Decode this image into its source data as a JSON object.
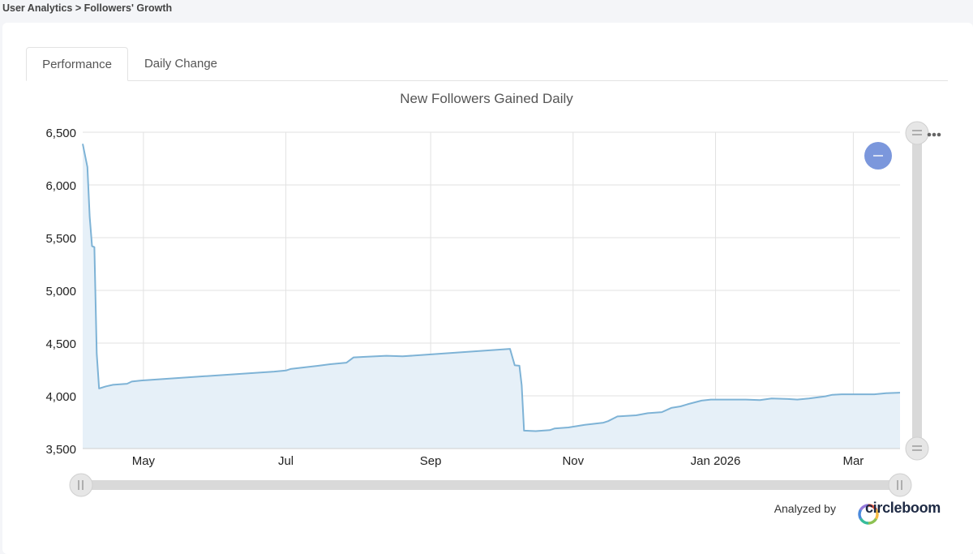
{
  "breadcrumb": "User Analytics > Followers' Growth",
  "tabs": [
    {
      "label": "Performance",
      "active": true
    },
    {
      "label": "Daily Change",
      "active": false
    }
  ],
  "footer": {
    "analyzed_by": "Analyzed by",
    "brand": "circleboom"
  },
  "colors": {
    "line": "#7eb3d6",
    "fill": "#e6f0f8",
    "grid": "#e2e2e2",
    "scrollbar": "#d9d9d9",
    "handle": "#e8e8e8",
    "zoom_button": "#7b97dc"
  },
  "icons": {
    "zoom_out_button": "minus-icon",
    "menu": "ellipsis-icon"
  },
  "chart_data": {
    "type": "area",
    "title": "New Followers Gained Daily",
    "xlabel": "",
    "ylabel": "",
    "ylim": [
      3500,
      6500
    ],
    "y_ticks": [
      {
        "value": 3500,
        "label": "3,500"
      },
      {
        "value": 4000,
        "label": "4,000"
      },
      {
        "value": 4500,
        "label": "4,500"
      },
      {
        "value": 5000,
        "label": "5,000"
      },
      {
        "value": 5500,
        "label": "5,500"
      },
      {
        "value": 6000,
        "label": "6,000"
      },
      {
        "value": 6500,
        "label": "6,500"
      }
    ],
    "xlim": [
      "2025-04-05",
      "2026-03-21"
    ],
    "x_ticks": [
      {
        "date": "2025-05-01",
        "label": "May"
      },
      {
        "date": "2025-07-01",
        "label": "Jul"
      },
      {
        "date": "2025-09-01",
        "label": "Sep"
      },
      {
        "date": "2025-11-01",
        "label": "Nov"
      },
      {
        "date": "2026-01-01",
        "label": "Jan 2026"
      },
      {
        "date": "2026-03-01",
        "label": "Mar"
      }
    ],
    "grid": true,
    "series": [
      {
        "points": [
          [
            "2025-04-05",
            6390
          ],
          [
            "2025-04-07",
            6170
          ],
          [
            "2025-04-08",
            5700
          ],
          [
            "2025-04-09",
            5420
          ],
          [
            "2025-04-10",
            5410
          ],
          [
            "2025-04-11",
            4400
          ],
          [
            "2025-04-12",
            4070
          ],
          [
            "2025-04-15",
            4090
          ],
          [
            "2025-04-18",
            4105
          ],
          [
            "2025-04-24",
            4115
          ],
          [
            "2025-04-26",
            4135
          ],
          [
            "2025-04-30",
            4145
          ],
          [
            "2025-06-26",
            4230
          ],
          [
            "2025-07-01",
            4240
          ],
          [
            "2025-07-03",
            4255
          ],
          [
            "2025-07-09",
            4270
          ],
          [
            "2025-07-15",
            4285
          ],
          [
            "2025-07-20",
            4300
          ],
          [
            "2025-07-27",
            4315
          ],
          [
            "2025-07-30",
            4365
          ],
          [
            "2025-08-04",
            4370
          ],
          [
            "2025-08-13",
            4380
          ],
          [
            "2025-08-20",
            4375
          ],
          [
            "2025-10-05",
            4445
          ],
          [
            "2025-10-07",
            4290
          ],
          [
            "2025-10-09",
            4285
          ],
          [
            "2025-10-10",
            4100
          ],
          [
            "2025-10-11",
            3670
          ],
          [
            "2025-10-16",
            3665
          ],
          [
            "2025-10-22",
            3675
          ],
          [
            "2025-10-24",
            3690
          ],
          [
            "2025-10-30",
            3700
          ],
          [
            "2025-11-06",
            3725
          ],
          [
            "2025-11-14",
            3745
          ],
          [
            "2025-11-16",
            3760
          ],
          [
            "2025-11-20",
            3805
          ],
          [
            "2025-11-28",
            3815
          ],
          [
            "2025-12-03",
            3835
          ],
          [
            "2025-12-09",
            3845
          ],
          [
            "2025-12-13",
            3885
          ],
          [
            "2025-12-17",
            3900
          ],
          [
            "2025-12-20",
            3920
          ],
          [
            "2025-12-26",
            3955
          ],
          [
            "2025-12-30",
            3965
          ],
          [
            "2026-01-14",
            3965
          ],
          [
            "2026-01-20",
            3960
          ],
          [
            "2026-01-25",
            3975
          ],
          [
            "2026-02-01",
            3970
          ],
          [
            "2026-02-05",
            3965
          ],
          [
            "2026-02-10",
            3975
          ],
          [
            "2026-02-17",
            3995
          ],
          [
            "2026-02-20",
            4010
          ],
          [
            "2026-02-24",
            4015
          ],
          [
            "2026-03-10",
            4015
          ],
          [
            "2026-03-15",
            4025
          ],
          [
            "2026-03-21",
            4030
          ]
        ]
      }
    ],
    "legend": "none"
  }
}
